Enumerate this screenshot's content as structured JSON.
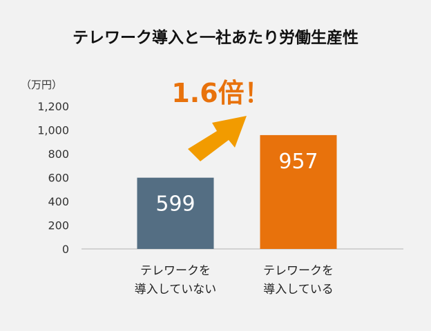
{
  "chart_data": {
    "type": "bar",
    "title": "テレワーク導入と一社あたり労働生産性",
    "unit_label": "（万円）",
    "ylim": [
      0,
      1200
    ],
    "yticks": [
      "0",
      "200",
      "400",
      "600",
      "800",
      "1,000",
      "1,200"
    ],
    "categories": [
      [
        "テレワークを",
        "導入していない"
      ],
      [
        "テレワークを",
        "導入している"
      ]
    ],
    "values": [
      599,
      957
    ],
    "value_labels": [
      "599",
      "957"
    ],
    "colors": [
      "#546e83",
      "#e8720c"
    ],
    "annotation": "1.6倍！",
    "annotation_color": "#e8720c",
    "arrow_color": "#f29b00",
    "grid": false
  }
}
